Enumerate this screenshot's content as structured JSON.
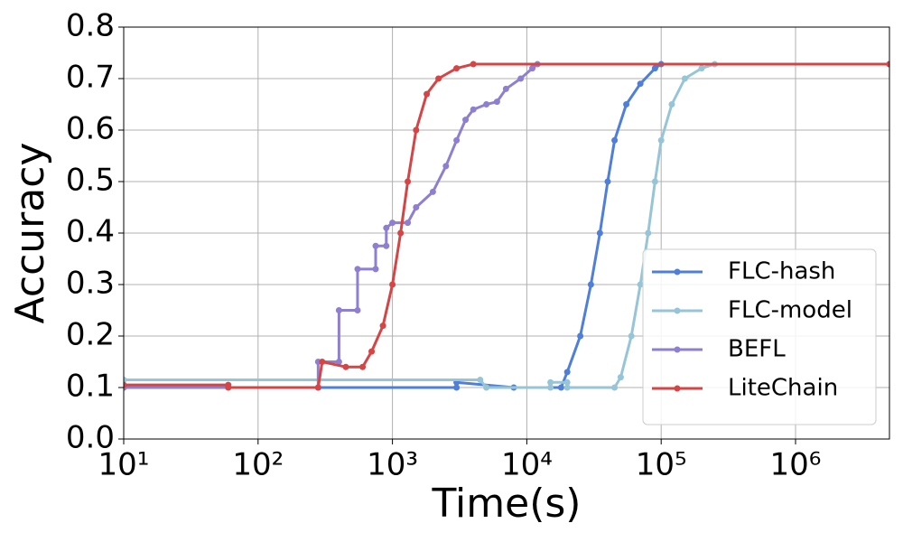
{
  "chart_data": {
    "type": "line",
    "x_label": "Time(s)",
    "y_label": "Accuracy",
    "xscale": "log",
    "grid": true,
    "legend": "lower right",
    "xlim": [
      10,
      5000000
    ],
    "ylim": [
      0,
      0.8
    ],
    "xticks": [
      {
        "value": 10,
        "label": "10¹"
      },
      {
        "value": 100,
        "label": "10²"
      },
      {
        "value": 1000,
        "label": "10³"
      },
      {
        "value": 10000,
        "label": "10⁴"
      },
      {
        "value": 100000,
        "label": "10⁵"
      },
      {
        "value": 1000000,
        "label": "10⁶"
      }
    ],
    "yticks": [
      {
        "value": 0,
        "label": "0.0"
      },
      0.1,
      0.2,
      0.3,
      0.4,
      0.5,
      0.6,
      0.7,
      0.8
    ],
    "series": [
      {
        "name": "FLC-hash",
        "color": "#4f7fd8",
        "x": [
          10,
          3000,
          3000,
          8000,
          18000,
          20000,
          25000,
          30000,
          35000,
          40000,
          45000,
          55000,
          70000,
          90000,
          100000,
          5000000
        ],
        "values": [
          0.1,
          0.1,
          0.11,
          0.1,
          0.1,
          0.13,
          0.2,
          0.3,
          0.4,
          0.5,
          0.58,
          0.65,
          0.69,
          0.72,
          0.728,
          0.728
        ]
      },
      {
        "name": "FLC-model",
        "color": "#96c5d8",
        "x": [
          10,
          4500,
          5000,
          15000,
          15000,
          20000,
          20000,
          45000,
          50000,
          60000,
          70000,
          80000,
          90000,
          100000,
          120000,
          150000,
          200000,
          250000,
          5000000
        ],
        "values": [
          0.115,
          0.115,
          0.1,
          0.1,
          0.11,
          0.11,
          0.1,
          0.1,
          0.12,
          0.2,
          0.3,
          0.4,
          0.5,
          0.58,
          0.65,
          0.7,
          0.72,
          0.728,
          0.728
        ]
      },
      {
        "name": "BEFL",
        "color": "#8e7fd0",
        "x": [
          10,
          280,
          280,
          400,
          400,
          550,
          550,
          750,
          750,
          900,
          900,
          1000,
          1300,
          1500,
          2000,
          2500,
          3000,
          3500,
          4000,
          5000,
          6000,
          7000,
          9000,
          11000,
          12000,
          5000000
        ],
        "values": [
          0.1,
          0.1,
          0.15,
          0.15,
          0.25,
          0.25,
          0.33,
          0.33,
          0.375,
          0.375,
          0.41,
          0.42,
          0.42,
          0.45,
          0.48,
          0.53,
          0.58,
          0.62,
          0.64,
          0.65,
          0.655,
          0.68,
          0.7,
          0.72,
          0.728,
          0.728
        ]
      },
      {
        "name": "LiteChain",
        "color": "#d64545",
        "x": [
          10,
          60,
          60,
          280,
          300,
          450,
          600,
          700,
          850,
          1000,
          1150,
          1300,
          1500,
          1800,
          2200,
          3000,
          4000,
          5000000
        ],
        "values": [
          0.105,
          0.105,
          0.1,
          0.1,
          0.15,
          0.14,
          0.14,
          0.17,
          0.22,
          0.3,
          0.4,
          0.5,
          0.6,
          0.67,
          0.7,
          0.72,
          0.728,
          0.728
        ]
      }
    ]
  }
}
